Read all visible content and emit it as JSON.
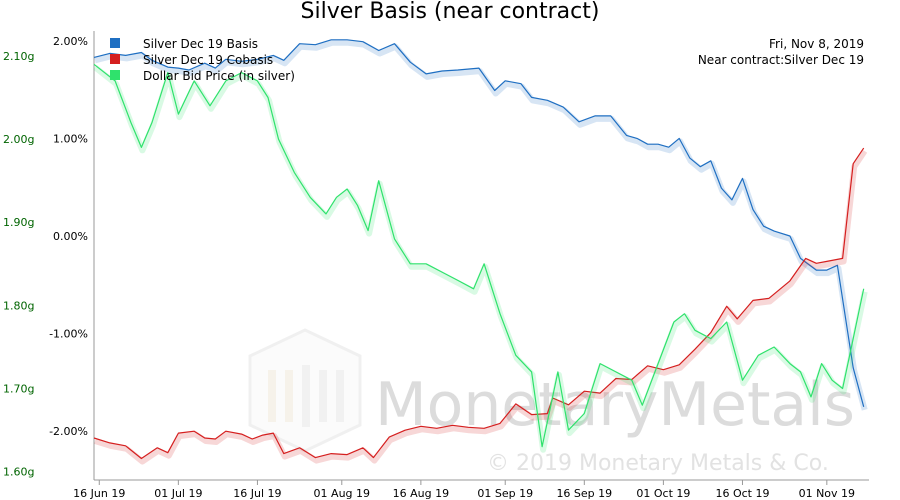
{
  "chart_data": {
    "type": "line",
    "title": "Silver Basis (near contract)",
    "info_date": "Fri, Nov 8, 2019",
    "info_contract": "Near contract:Silver Dec 19",
    "watermark": "MonetaryMetals",
    "copyright": "© 2019 Monetary Metals & Co.",
    "x_ticks": [
      {
        "label": "16 Jun 19",
        "day": 0
      },
      {
        "label": "01 Jul 19",
        "day": 15
      },
      {
        "label": "16 Jul 19",
        "day": 30
      },
      {
        "label": "01 Aug 19",
        "day": 46
      },
      {
        "label": "16 Aug 19",
        "day": 61
      },
      {
        "label": "01 Sep 19",
        "day": 77
      },
      {
        "label": "16 Sep 19",
        "day": 92
      },
      {
        "label": "01 Oct 19",
        "day": 107
      },
      {
        "label": "16 Oct 19",
        "day": 122
      },
      {
        "label": "01 Nov 19",
        "day": 138
      }
    ],
    "x_range": [
      -1,
      146
    ],
    "left_axis": {
      "ylim": [
        -2.5,
        2.1
      ],
      "ticks": [
        {
          "label": "2.00%",
          "v": 2
        },
        {
          "label": "1.00%",
          "v": 1
        },
        {
          "label": "0.00%",
          "v": 0
        },
        {
          "label": "-1.00%",
          "v": -1
        },
        {
          "label": "-2.00%",
          "v": -2
        }
      ]
    },
    "right_axis": {
      "ylim": [
        1.59,
        2.13
      ],
      "ticks": [
        {
          "label": "2.10g",
          "v": 2.1
        },
        {
          "label": "2.00g",
          "v": 2.0
        },
        {
          "label": "1.90g",
          "v": 1.9
        },
        {
          "label": "1.80g",
          "v": 1.8
        },
        {
          "label": "1.70g",
          "v": 1.7
        },
        {
          "label": "1.60g",
          "v": 1.6
        }
      ]
    },
    "series": [
      {
        "name": "Silver Dec 19 Basis",
        "color": "#1f6fc2",
        "axis": "left",
        "points": [
          [
            -1,
            1.83
          ],
          [
            2,
            1.87
          ],
          [
            5,
            1.85
          ],
          [
            8,
            1.88
          ],
          [
            10,
            1.8
          ],
          [
            13,
            1.73
          ],
          [
            15,
            1.72
          ],
          [
            17,
            1.7
          ],
          [
            20,
            1.77
          ],
          [
            22,
            1.72
          ],
          [
            24,
            1.81
          ],
          [
            27,
            1.79
          ],
          [
            30,
            1.81
          ],
          [
            33,
            1.85
          ],
          [
            35,
            1.8
          ],
          [
            38,
            1.97
          ],
          [
            41,
            1.96
          ],
          [
            44,
            2.01
          ],
          [
            47,
            2.01
          ],
          [
            50,
            1.99
          ],
          [
            53,
            1.9
          ],
          [
            56,
            1.97
          ],
          [
            59,
            1.78
          ],
          [
            62,
            1.66
          ],
          [
            65,
            1.69
          ],
          [
            68,
            1.7
          ],
          [
            72,
            1.72
          ],
          [
            75,
            1.49
          ],
          [
            77,
            1.59
          ],
          [
            80,
            1.56
          ],
          [
            82,
            1.42
          ],
          [
            85,
            1.39
          ],
          [
            88,
            1.32
          ],
          [
            91,
            1.17
          ],
          [
            94,
            1.23
          ],
          [
            97,
            1.23
          ],
          [
            100,
            1.03
          ],
          [
            102,
            1.0
          ],
          [
            104,
            0.94
          ],
          [
            106,
            0.94
          ],
          [
            108,
            0.91
          ],
          [
            110,
            1.0
          ],
          [
            112,
            0.8
          ],
          [
            114,
            0.71
          ],
          [
            116,
            0.77
          ],
          [
            118,
            0.49
          ],
          [
            120,
            0.37
          ],
          [
            122,
            0.59
          ],
          [
            124,
            0.27
          ],
          [
            126,
            0.1
          ],
          [
            128,
            0.05
          ],
          [
            131,
            0.0
          ],
          [
            133,
            -0.23
          ],
          [
            136,
            -0.35
          ],
          [
            138,
            -0.35
          ],
          [
            140,
            -0.3
          ],
          [
            143,
            -1.35
          ],
          [
            145,
            -1.75
          ]
        ]
      },
      {
        "name": "Silver Dec 19 Cobasis",
        "color": "#d51f1f",
        "axis": "left",
        "points": [
          [
            -1,
            -2.07
          ],
          [
            2,
            -2.12
          ],
          [
            5,
            -2.15
          ],
          [
            8,
            -2.28
          ],
          [
            11,
            -2.17
          ],
          [
            13,
            -2.22
          ],
          [
            15,
            -2.02
          ],
          [
            18,
            -2.0
          ],
          [
            20,
            -2.07
          ],
          [
            22,
            -2.08
          ],
          [
            24,
            -2.0
          ],
          [
            27,
            -2.03
          ],
          [
            29,
            -2.08
          ],
          [
            31,
            -2.04
          ],
          [
            33,
            -2.02
          ],
          [
            35,
            -2.23
          ],
          [
            38,
            -2.17
          ],
          [
            41,
            -2.27
          ],
          [
            44,
            -2.23
          ],
          [
            47,
            -2.24
          ],
          [
            50,
            -2.17
          ],
          [
            52,
            -2.27
          ],
          [
            55,
            -2.06
          ],
          [
            58,
            -1.99
          ],
          [
            61,
            -1.95
          ],
          [
            64,
            -1.97
          ],
          [
            67,
            -1.94
          ],
          [
            70,
            -1.96
          ],
          [
            73,
            -1.97
          ],
          [
            76,
            -1.92
          ],
          [
            79,
            -1.72
          ],
          [
            82,
            -1.83
          ],
          [
            85,
            -1.82
          ],
          [
            86,
            -1.66
          ],
          [
            89,
            -1.73
          ],
          [
            92,
            -1.59
          ],
          [
            95,
            -1.61
          ],
          [
            98,
            -1.46
          ],
          [
            101,
            -1.47
          ],
          [
            104,
            -1.33
          ],
          [
            107,
            -1.37
          ],
          [
            110,
            -1.32
          ],
          [
            113,
            -1.16
          ],
          [
            116,
            -0.99
          ],
          [
            119,
            -0.72
          ],
          [
            121,
            -0.85
          ],
          [
            124,
            -0.66
          ],
          [
            127,
            -0.64
          ],
          [
            131,
            -0.46
          ],
          [
            134,
            -0.23
          ],
          [
            136,
            -0.28
          ],
          [
            138,
            -0.26
          ],
          [
            141,
            -0.23
          ],
          [
            143,
            0.74
          ],
          [
            145,
            0.9
          ]
        ]
      },
      {
        "name": "Dollar Bid Price (in silver)",
        "color": "#2fe26c",
        "axis": "right",
        "points": [
          [
            -1,
            2.09
          ],
          [
            3,
            2.07
          ],
          [
            6,
            2.02
          ],
          [
            8,
            1.99
          ],
          [
            10,
            2.02
          ],
          [
            13,
            2.08
          ],
          [
            15,
            2.03
          ],
          [
            18,
            2.07
          ],
          [
            21,
            2.04
          ],
          [
            24,
            2.07
          ],
          [
            27,
            2.08
          ],
          [
            30,
            2.07
          ],
          [
            32,
            2.05
          ],
          [
            34,
            2.0
          ],
          [
            37,
            1.96
          ],
          [
            40,
            1.93
          ],
          [
            43,
            1.91
          ],
          [
            45,
            1.93
          ],
          [
            47,
            1.94
          ],
          [
            49,
            1.92
          ],
          [
            51,
            1.89
          ],
          [
            53,
            1.95
          ],
          [
            56,
            1.88
          ],
          [
            59,
            1.85
          ],
          [
            62,
            1.85
          ],
          [
            65,
            1.84
          ],
          [
            68,
            1.83
          ],
          [
            71,
            1.82
          ],
          [
            73,
            1.85
          ],
          [
            76,
            1.79
          ],
          [
            79,
            1.74
          ],
          [
            82,
            1.72
          ],
          [
            84,
            1.63
          ],
          [
            87,
            1.72
          ],
          [
            89,
            1.65
          ],
          [
            92,
            1.67
          ],
          [
            95,
            1.73
          ],
          [
            98,
            1.72
          ],
          [
            101,
            1.71
          ],
          [
            103,
            1.68
          ],
          [
            106,
            1.73
          ],
          [
            109,
            1.78
          ],
          [
            111,
            1.79
          ],
          [
            113,
            1.77
          ],
          [
            116,
            1.76
          ],
          [
            119,
            1.78
          ],
          [
            122,
            1.71
          ],
          [
            125,
            1.74
          ],
          [
            128,
            1.75
          ],
          [
            131,
            1.73
          ],
          [
            133,
            1.72
          ],
          [
            135,
            1.69
          ],
          [
            137,
            1.73
          ],
          [
            139,
            1.71
          ],
          [
            141,
            1.7
          ],
          [
            143,
            1.76
          ],
          [
            145,
            1.82
          ]
        ]
      }
    ]
  }
}
